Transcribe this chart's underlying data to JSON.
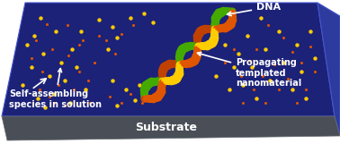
{
  "bg_color": "#ffffff",
  "platform_top_color": "#1c2278",
  "platform_bottom_color": "#4a4f57",
  "platform_right_color": "#2d3a9e",
  "substrate_text": "Substrate",
  "substrate_text_color": "#ffffff",
  "substrate_text_fontsize": 9,
  "dna_label": "DNA",
  "dna_label_color": "#ffffff",
  "propagating_label": "Propagating\ntemplated\nnanomaterial",
  "propagating_label_color": "#ffffff",
  "self_assembling_label": "Self-assembling\nspecies in solution",
  "self_assembling_label_color": "#ffffff",
  "label_fontsize": 7.0,
  "scattered_yellow": "#ffcc00",
  "scattered_orange": "#e05500",
  "helix_yellow": "#ffcc00",
  "helix_orange": "#e05500",
  "helix_green": "#44aa00",
  "helix_red": "#cc1100",
  "helix_dark_orange": "#c04000"
}
